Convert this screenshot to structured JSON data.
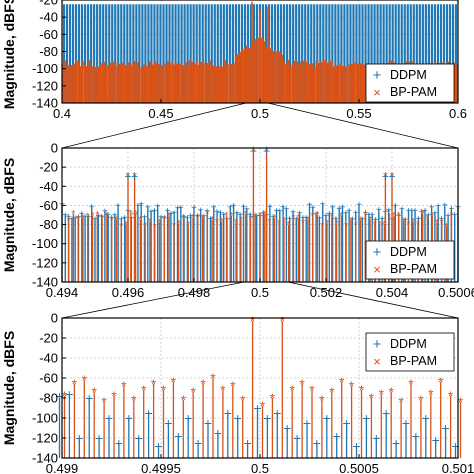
{
  "colors": {
    "ddpm": "#1f77b4",
    "bppam": "#d95319",
    "grid": "#c8c8c8",
    "axes": "#000000"
  },
  "chart_data": [
    {
      "type": "line",
      "title": "",
      "xlabel": "",
      "ylabel": "Magnitude, dBFS",
      "xlim": [
        0.4,
        0.6
      ],
      "ylim": [
        -140,
        -20
      ],
      "x_ticks": [
        "0.4",
        "0.45",
        "0.5",
        "0.55",
        "0.6"
      ],
      "y_ticks": [
        "-20",
        "-40",
        "-60",
        "-80",
        "-100",
        "-120",
        "-140"
      ],
      "grid": true,
      "legend": "bottom-right",
      "series": [
        {
          "name": "DDPM",
          "description_floor_db": -95,
          "spur_level_db": -40
        },
        {
          "name": "BP-PAM",
          "description_floor_db": -140,
          "spur_level_db": -90
        }
      ]
    },
    {
      "type": "line",
      "title": "",
      "xlabel": "",
      "ylabel": "Magnitude, dBFS",
      "xlim": [
        0.494,
        0.506
      ],
      "ylim": [
        -140,
        0
      ],
      "x_ticks": [
        "0.494",
        "0.496",
        "0.498",
        "0.5",
        "0.502",
        "0.504",
        "0.5006"
      ],
      "y_ticks": [
        "0",
        "-20",
        "-40",
        "-60",
        "-80",
        "-100",
        "-120",
        "-140"
      ],
      "grid": true,
      "legend": "bottom-right",
      "peaks": [
        {
          "x": 0.4998,
          "y": -3
        },
        {
          "x": 0.5002,
          "y": -3
        },
        {
          "x": 0.496,
          "y": -30
        },
        {
          "x": 0.4962,
          "y": -30
        },
        {
          "x": 0.5038,
          "y": -30
        },
        {
          "x": 0.504,
          "y": -30
        }
      ],
      "series": [
        {
          "name": "DDPM"
        },
        {
          "name": "BP-PAM"
        }
      ]
    },
    {
      "type": "line",
      "title": "",
      "xlabel": "",
      "ylabel": "Magnitude, dBFS",
      "xlim": [
        0.499,
        0.501
      ],
      "ylim": [
        -140,
        0
      ],
      "x_ticks": [
        "0.499",
        "0.4995",
        "0.5",
        "0.5005",
        "0.501"
      ],
      "y_ticks": [
        "0",
        "-20",
        "-40",
        "-60",
        "-80",
        "-100",
        "-120",
        "-140"
      ],
      "grid": true,
      "legend": "top-right",
      "x": [
        0.499,
        0.49905,
        0.4991,
        0.49915,
        0.4992,
        0.49925,
        0.4993,
        0.49935,
        0.4994,
        0.49945,
        0.4995,
        0.49955,
        0.4996,
        0.49965,
        0.4997,
        0.49975,
        0.4998,
        0.49985,
        0.4999,
        0.49995,
        0.5,
        0.50005,
        0.5001,
        0.50015,
        0.5002,
        0.50025,
        0.5003,
        0.50035,
        0.5004,
        0.50045,
        0.5005,
        0.50055,
        0.5006,
        0.50065,
        0.5007,
        0.50075,
        0.5008,
        0.50085,
        0.5009,
        0.50095,
        0.501
      ],
      "series": [
        {
          "name": "DDPM",
          "values": [
            -78,
            -76,
            -120,
            -80,
            -120,
            -100,
            -125,
            -100,
            -120,
            -95,
            -128,
            -105,
            -118,
            -100,
            -125,
            -105,
            -115,
            -95,
            -100,
            -125,
            -90,
            -100,
            -95,
            -110,
            -120,
            -105,
            -125,
            -100,
            -118,
            -105,
            -128,
            -100,
            -120,
            -95,
            -125,
            -105,
            -118,
            -100,
            -122,
            -110,
            -128
          ]
        },
        {
          "name": "BP-PAM",
          "values": [
            -78,
            -66,
            -62,
            -74,
            -84,
            -78,
            -68,
            -82,
            -72,
            -66,
            -72,
            -64,
            -82,
            -74,
            -66,
            -60,
            -72,
            -68,
            -82,
            -3,
            -88,
            -80,
            -3,
            -72,
            -66,
            -72,
            -82,
            -74,
            -64,
            -68,
            -72,
            -80,
            -76,
            -74,
            -84,
            -66,
            -82,
            -76,
            -64,
            -78,
            -84
          ]
        }
      ]
    }
  ]
}
